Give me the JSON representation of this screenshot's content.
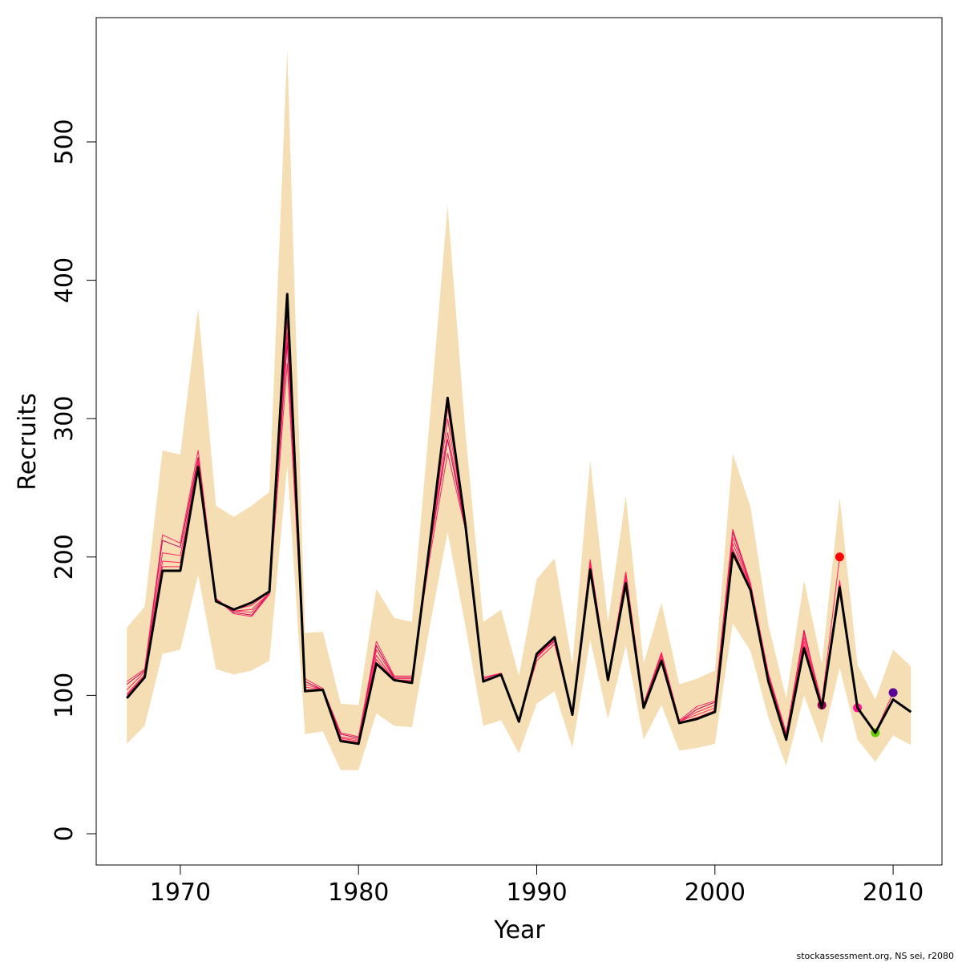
{
  "chart_data": {
    "type": "line",
    "xlabel": "Year",
    "ylabel": "Recruits",
    "footnote": "stockassessment.org, NS sei, r2080",
    "xlim": [
      1965.28,
      2012.74
    ],
    "ylim": [
      -22.6,
      589.8
    ],
    "xticks": [
      1970,
      1980,
      1990,
      2000,
      2010
    ],
    "yticks": [
      0,
      100,
      200,
      300,
      400,
      500
    ],
    "x": [
      1967,
      1968,
      1969,
      1970,
      1971,
      1972,
      1973,
      1974,
      1975,
      1976,
      1977,
      1978,
      1979,
      1980,
      1981,
      1982,
      1983,
      1984,
      1985,
      1986,
      1987,
      1988,
      1989,
      1990,
      1991,
      1992,
      1993,
      1994,
      1995,
      1996,
      1997,
      1998,
      1999,
      2000,
      2001,
      2002,
      2003,
      2004,
      2005,
      2006,
      2007,
      2008,
      2009,
      2010,
      2011
    ],
    "band": {
      "color": "#f5deb3",
      "upper": [
        149,
        164,
        277,
        274,
        380,
        237,
        229,
        237,
        247,
        567,
        145,
        146,
        94,
        93,
        177,
        156,
        153,
        300,
        454,
        290,
        153,
        162,
        114,
        184,
        199,
        122,
        270,
        153,
        244,
        123,
        167,
        108,
        112,
        118,
        275,
        236,
        151,
        98,
        183,
        123,
        243,
        122,
        97,
        133,
        121
      ],
      "lower": [
        65,
        78,
        130,
        133,
        187,
        119,
        115,
        118,
        125,
        266,
        72,
        74,
        46,
        46,
        87,
        78,
        77,
        150,
        218,
        150,
        78,
        82,
        58,
        94,
        103,
        62,
        140,
        83,
        136,
        68,
        93,
        60,
        62,
        65,
        152,
        132,
        84,
        49,
        100,
        65,
        120,
        68,
        52,
        71,
        64
      ]
    },
    "series": [
      {
        "color": "#a0005a",
        "values": [
          108,
          118,
          212,
          207,
          272,
          170,
          160,
          158,
          174,
          355,
          110,
          104,
          72,
          69,
          136,
          113,
          113,
          205,
          285,
          221,
          112,
          116,
          82,
          128,
          139,
          87,
          197,
          112,
          189,
          93,
          130,
          81,
          90,
          95,
          218,
          180,
          115,
          72,
          147,
          93,
          null,
          null,
          null,
          null,
          null
        ]
      },
      {
        "color": "#ff0000",
        "values": [
          110,
          119,
          216,
          210,
          277,
          170,
          159,
          157,
          173,
          340,
          112,
          105,
          73,
          70,
          139,
          114,
          114,
          200,
          275,
          220,
          113,
          116,
          82,
          125,
          137,
          87,
          198,
          113,
          189,
          94,
          131,
          82,
          92,
          96,
          220,
          181,
          116,
          73,
          145,
          95,
          200,
          null,
          null,
          null,
          null
        ]
      },
      {
        "color": "#ff1493",
        "values": [
          104,
          117,
          203,
          201,
          270,
          169,
          161,
          160,
          174,
          362,
          108,
          104,
          70,
          68,
          133,
          112,
          112,
          206,
          290,
          222,
          111,
          115,
          81,
          127,
          140,
          86,
          195,
          112,
          188,
          92,
          129,
          81,
          88,
          93,
          214,
          179,
          113,
          71,
          142,
          93,
          183,
          91,
          null,
          null,
          null
        ]
      },
      {
        "color": "#66cc00",
        "values": [
          101,
          115,
          197,
          196,
          268,
          168,
          161,
          162,
          174,
          370,
          106,
          104,
          69,
          67,
          129,
          111,
          111,
          207,
          300,
          222,
          111,
          115,
          81,
          128,
          141,
          86,
          193,
          111,
          185,
          92,
          127,
          81,
          86,
          91,
          210,
          178,
          112,
          70,
          139,
          92,
          181,
          90,
          73,
          null,
          null
        ]
      },
      {
        "color": "#5a0099",
        "values": [
          100,
          114,
          193,
          193,
          267,
          168,
          162,
          165,
          175,
          380,
          104,
          104,
          68,
          66,
          126,
          111,
          110,
          209,
          308,
          223,
          110,
          115,
          81,
          129,
          141,
          86,
          192,
          111,
          183,
          91,
          126,
          80,
          84,
          89,
          206,
          177,
          111,
          69,
          136,
          91,
          179,
          90,
          73,
          102,
          null
        ]
      },
      {
        "color": "#000000",
        "values": [
          98,
          113,
          190,
          190,
          265,
          168,
          162,
          167,
          175,
          390,
          103,
          104,
          67,
          65,
          123,
          111,
          109,
          210,
          315,
          223,
          110,
          115,
          81,
          130,
          142,
          86,
          191,
          111,
          181,
          91,
          125,
          80,
          83,
          88,
          203,
          176,
          110,
          68,
          134,
          91,
          178,
          91,
          73,
          97,
          88
        ]
      }
    ]
  }
}
